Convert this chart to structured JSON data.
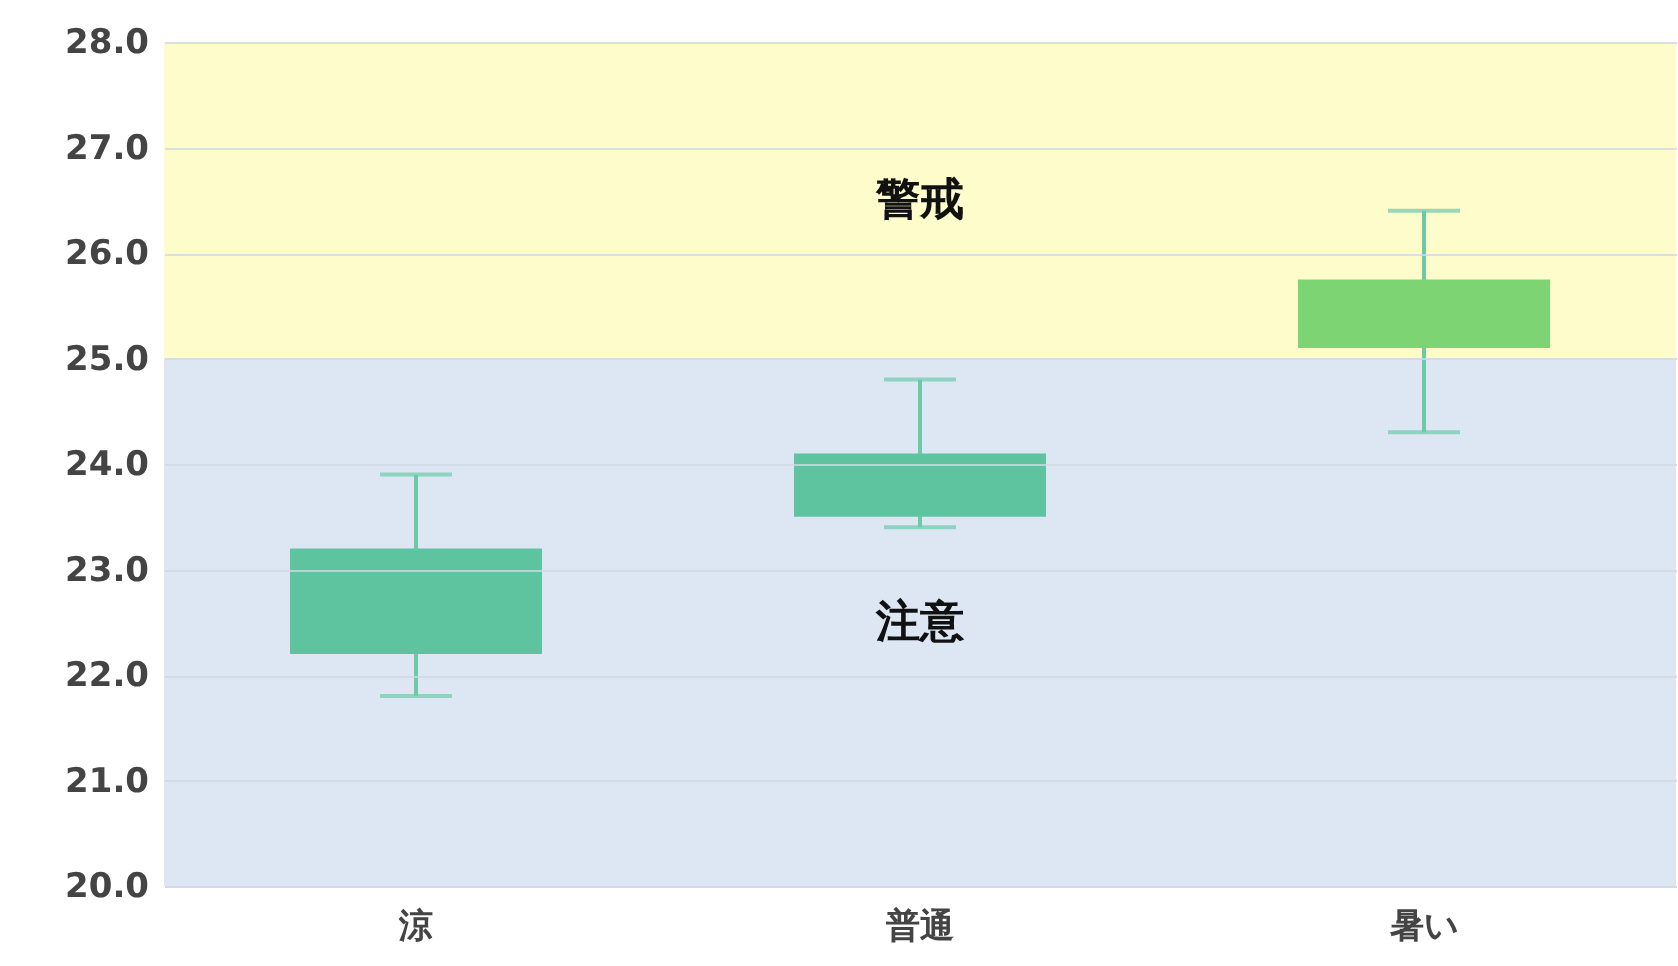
{
  "chart_data": {
    "type": "box",
    "categories": [
      "涼",
      "普通",
      "暑い"
    ],
    "boxes": [
      {
        "low": 21.8,
        "q1": 22.2,
        "q3": 23.2,
        "high": 23.9
      },
      {
        "low": 23.4,
        "q1": 23.5,
        "q3": 24.1,
        "high": 24.8
      },
      {
        "low": 24.3,
        "q1": 25.1,
        "q3": 25.75,
        "high": 26.4
      }
    ],
    "colors": [
      "#5ec4a0",
      "#5ec4a0",
      "#7dd472"
    ],
    "ylim": [
      20,
      28
    ],
    "yticks": [
      {
        "value": 20,
        "label": "20.0"
      },
      {
        "value": 21,
        "label": "21.0"
      },
      {
        "value": 22,
        "label": "22.0"
      },
      {
        "value": 23,
        "label": "23.0"
      },
      {
        "value": 24,
        "label": "24.0"
      },
      {
        "value": 25,
        "label": "25.0"
      },
      {
        "value": 26,
        "label": "26.0"
      },
      {
        "value": 27,
        "label": "27.0"
      },
      {
        "value": 28,
        "label": "28.0"
      }
    ],
    "grid": true,
    "bands": [
      {
        "axis": "y",
        "from": 25,
        "to": 28,
        "label": "警戒",
        "color": "#fefccb"
      },
      {
        "axis": "y",
        "from": 20,
        "to": 25,
        "label": "注意",
        "color": "#dde7f4"
      }
    ]
  }
}
